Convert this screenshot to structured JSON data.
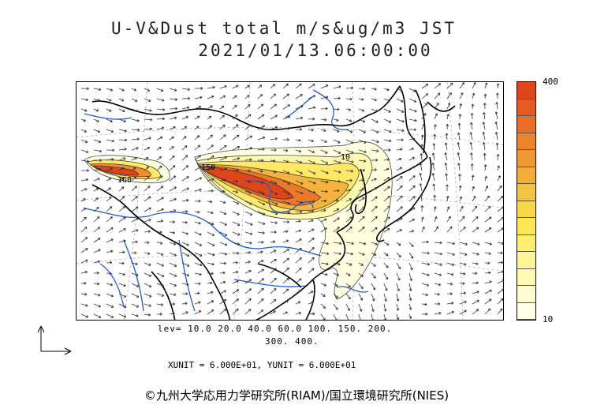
{
  "title": {
    "line1": "U-V&Dust total m/s&ug/m3 JST",
    "line2": "2021/01/13.06:00:00"
  },
  "colorbar": {
    "max_label": "400",
    "min_label": "10",
    "colors": [
      "#ffffe6",
      "#fffccf",
      "#fff9b3",
      "#fff495",
      "#ffee70",
      "#fde757",
      "#f8d84a",
      "#f5c342",
      "#f1ae3a",
      "#ee9a34",
      "#eb842d",
      "#e86d27",
      "#e35a20",
      "#df451a"
    ]
  },
  "levels": {
    "line1": "lev= 10.0 20.0 40.0 60.0 100. 150. 200.",
    "line2": "300. 400."
  },
  "units": {
    "text": "XUNIT = 6.000E+01, YUNIT = 6.000E+01"
  },
  "contour_labels": {
    "a": "150",
    "b": "160",
    "c": "10"
  },
  "credit": {
    "text": "©九州大学応用力学研究所(RIAM)/国立環境研究所(NIES)"
  },
  "colors": {
    "coast": "#000000",
    "rivers": "#1a5fd8",
    "vectors": "#333333",
    "dust_high": "#df451a",
    "dust_low": "#ffffe0"
  }
}
